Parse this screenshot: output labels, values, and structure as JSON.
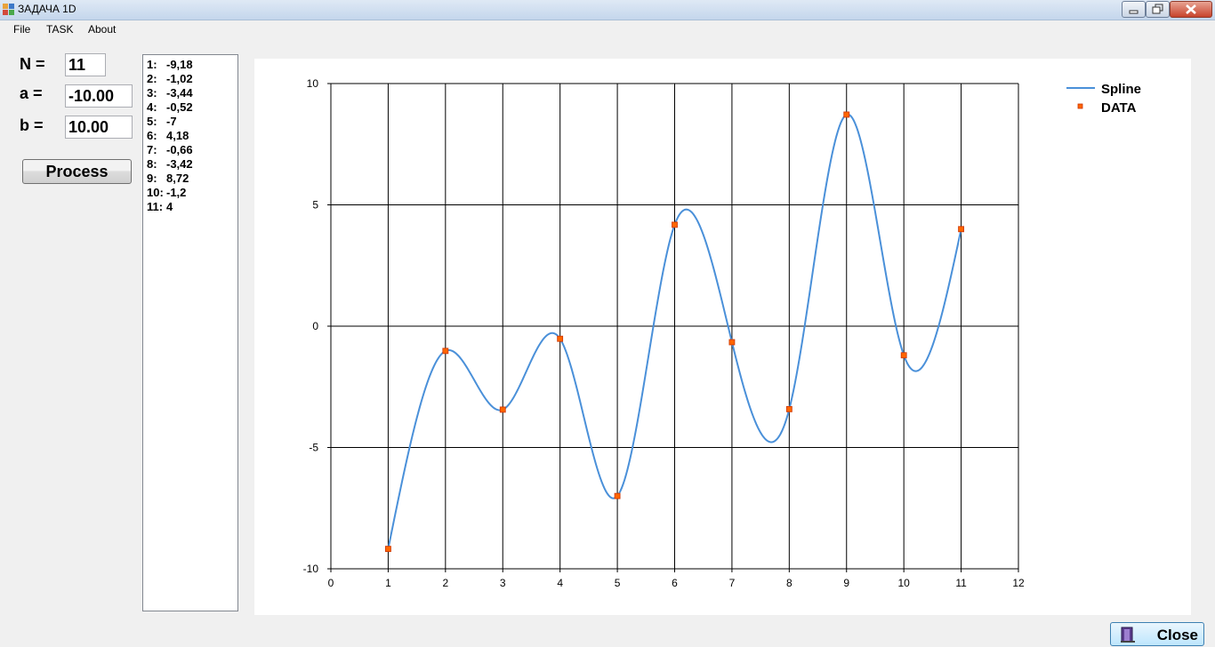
{
  "window": {
    "title": "ЗАДАЧА  1D"
  },
  "menu": [
    "File",
    "TASK",
    "About"
  ],
  "params": {
    "n_label": "N =",
    "n_value": "11",
    "a_label": "a =",
    "a_value": "-10.00",
    "b_label": "b =",
    "b_value": "10.00"
  },
  "process_label": "Process",
  "close_label": "Close",
  "results": [
    {
      "num": "1:",
      "val": "-9,18"
    },
    {
      "num": "2:",
      "val": "-1,02"
    },
    {
      "num": "3:",
      "val": "-3,44"
    },
    {
      "num": "4:",
      "val": "-0,52"
    },
    {
      "num": "5:",
      "val": "-7"
    },
    {
      "num": "6:",
      "val": "4,18"
    },
    {
      "num": "7:",
      "val": "-0,66"
    },
    {
      "num": "8:",
      "val": "-3,42"
    },
    {
      "num": "9:",
      "val": "8,72"
    },
    {
      "num": "10:",
      "val": "-1,2"
    },
    {
      "num": "11:",
      "val": "4"
    }
  ],
  "colors": {
    "spline": "#4a90d9",
    "data_marker": "#ff6600",
    "grid": "#000000"
  },
  "chart_data": {
    "type": "line",
    "xlim": [
      0,
      12
    ],
    "ylim": [
      -10,
      10
    ],
    "x_ticks": [
      0,
      1,
      2,
      3,
      4,
      5,
      6,
      7,
      8,
      9,
      10,
      11,
      12
    ],
    "y_ticks": [
      -10,
      -5,
      0,
      5,
      10
    ],
    "grid": true,
    "legend_position": "top-right",
    "series": [
      {
        "name": "Spline",
        "kind": "line",
        "x": [
          1,
          2,
          3,
          4,
          5,
          6,
          7,
          8,
          9,
          10,
          11
        ],
        "y": [
          -9.18,
          -1.02,
          -3.44,
          -0.52,
          -7,
          4.18,
          -0.66,
          -3.42,
          8.72,
          -1.2,
          4
        ]
      },
      {
        "name": "DATA",
        "kind": "markers",
        "x": [
          1,
          2,
          3,
          4,
          5,
          6,
          7,
          8,
          9,
          10,
          11
        ],
        "y": [
          -9.18,
          -1.02,
          -3.44,
          -0.52,
          -7,
          4.18,
          -0.66,
          -3.42,
          8.72,
          -1.2,
          4
        ]
      }
    ]
  }
}
